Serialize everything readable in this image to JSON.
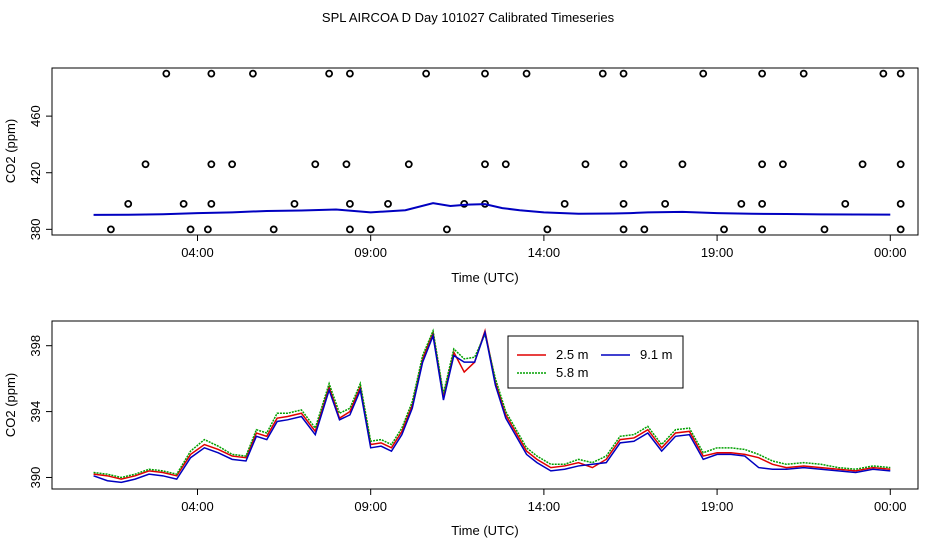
{
  "title": "SPL AIRCOA D  Day 101027  Calibrated Timeseries",
  "colors": {
    "frame": "#000000",
    "s25": "#e00000",
    "s58": "#00a000",
    "s91": "#0000c0",
    "circles": "#000000"
  },
  "chart_data": [
    {
      "type": "scatter",
      "xlabel": "Time (UTC)",
      "ylabel": "CO2 (ppm)",
      "x_tick_labels": [
        "04:00",
        "09:00",
        "14:00",
        "19:00",
        "00:00"
      ],
      "x_tick_hours": [
        4,
        9,
        14,
        19,
        24
      ],
      "xlim": [
        -0.2,
        24.8
      ],
      "y_ticks": [
        380,
        420,
        460
      ],
      "ylim": [
        376,
        494
      ],
      "grid": false,
      "points": [
        [
          1.5,
          380
        ],
        [
          2.0,
          398
        ],
        [
          2.5,
          426
        ],
        [
          3.1,
          490
        ],
        [
          3.6,
          398
        ],
        [
          3.8,
          380
        ],
        [
          4.3,
          380
        ],
        [
          4.4,
          398
        ],
        [
          4.4,
          426
        ],
        [
          4.4,
          490
        ],
        [
          5.0,
          426
        ],
        [
          5.6,
          490
        ],
        [
          6.2,
          380
        ],
        [
          6.8,
          398
        ],
        [
          7.4,
          426
        ],
        [
          7.8,
          490
        ],
        [
          8.3,
          426
        ],
        [
          8.4,
          398
        ],
        [
          8.4,
          380
        ],
        [
          8.4,
          490
        ],
        [
          9.0,
          380
        ],
        [
          9.5,
          398
        ],
        [
          10.1,
          426
        ],
        [
          10.6,
          490
        ],
        [
          11.2,
          380
        ],
        [
          11.7,
          398
        ],
        [
          12.3,
          398
        ],
        [
          12.3,
          426
        ],
        [
          12.3,
          490
        ],
        [
          12.9,
          426
        ],
        [
          13.5,
          490
        ],
        [
          14.1,
          380
        ],
        [
          14.6,
          398
        ],
        [
          15.2,
          426
        ],
        [
          15.7,
          490
        ],
        [
          16.3,
          426
        ],
        [
          16.3,
          398
        ],
        [
          16.3,
          380
        ],
        [
          16.3,
          490
        ],
        [
          16.9,
          380
        ],
        [
          17.5,
          398
        ],
        [
          18.0,
          426
        ],
        [
          18.6,
          490
        ],
        [
          19.2,
          380
        ],
        [
          19.7,
          398
        ],
        [
          20.3,
          398
        ],
        [
          20.3,
          426
        ],
        [
          20.3,
          490
        ],
        [
          20.3,
          380
        ],
        [
          20.9,
          426
        ],
        [
          21.5,
          490
        ],
        [
          22.1,
          380
        ],
        [
          22.7,
          398
        ],
        [
          23.2,
          426
        ],
        [
          23.8,
          490
        ],
        [
          24.3,
          426
        ],
        [
          24.3,
          398
        ],
        [
          24.3,
          380
        ],
        [
          24.3,
          490
        ]
      ],
      "series": [
        {
          "name": "",
          "x": [
            1.0,
            2.0,
            3.0,
            4.0,
            5.0,
            6.0,
            7.0,
            8.0,
            9.0,
            10.0,
            10.8,
            11.3,
            11.8,
            12.3,
            12.8,
            13.3,
            14.0,
            15.0,
            16.0,
            16.5,
            17.0,
            18.0,
            19.0,
            20.0,
            21.0,
            22.0,
            23.0,
            24.0
          ],
          "y": [
            390.2,
            390.3,
            390.7,
            391.5,
            392.0,
            393.0,
            393.3,
            394.0,
            392.0,
            393.5,
            398.5,
            396.5,
            397.5,
            397.8,
            395.0,
            393.5,
            392.0,
            391.0,
            391.2,
            391.5,
            392.0,
            392.3,
            391.5,
            391.0,
            390.8,
            390.6,
            390.5,
            390.4
          ]
        }
      ]
    },
    {
      "type": "line",
      "xlabel": "Time (UTC)",
      "ylabel": "CO2 (ppm)",
      "x_tick_labels": [
        "04:00",
        "09:00",
        "14:00",
        "19:00",
        "00:00"
      ],
      "x_tick_hours": [
        4,
        9,
        14,
        19,
        24
      ],
      "xlim": [
        -0.2,
        24.8
      ],
      "y_ticks": [
        390,
        394,
        398
      ],
      "ylim": [
        389.3,
        399.5
      ],
      "legend_position": "top-center",
      "series": [
        {
          "name": "2.5 m",
          "x": [
            1.0,
            1.4,
            1.8,
            2.2,
            2.6,
            3.0,
            3.4,
            3.8,
            4.2,
            4.6,
            5.0,
            5.4,
            5.7,
            6.0,
            6.3,
            6.6,
            7.0,
            7.4,
            7.8,
            8.1,
            8.4,
            8.7,
            9.0,
            9.3,
            9.6,
            9.9,
            10.2,
            10.5,
            10.8,
            11.1,
            11.4,
            11.7,
            12.0,
            12.3,
            12.6,
            12.9,
            13.2,
            13.5,
            13.8,
            14.2,
            14.6,
            15.0,
            15.4,
            15.8,
            16.2,
            16.6,
            17.0,
            17.4,
            17.8,
            18.2,
            18.6,
            19.0,
            19.4,
            19.8,
            20.2,
            20.6,
            21.0,
            21.5,
            22.0,
            22.5,
            23.0,
            23.5,
            24.0
          ],
          "y": [
            390.2,
            390.1,
            389.9,
            390.1,
            390.4,
            390.3,
            390.1,
            391.4,
            392.0,
            391.7,
            391.3,
            391.2,
            392.7,
            392.5,
            393.6,
            393.7,
            393.9,
            392.8,
            395.5,
            393.6,
            394.0,
            395.5,
            392.0,
            392.1,
            391.8,
            392.8,
            394.4,
            397.2,
            398.8,
            394.9,
            397.6,
            396.4,
            397.0,
            398.9,
            395.8,
            393.8,
            392.7,
            391.6,
            391.1,
            390.6,
            390.7,
            390.9,
            390.6,
            391.1,
            392.3,
            392.4,
            392.9,
            391.8,
            392.7,
            392.8,
            391.3,
            391.5,
            391.5,
            391.4,
            391.2,
            390.8,
            390.6,
            390.7,
            390.6,
            390.5,
            390.4,
            390.6,
            390.5
          ]
        },
        {
          "name": "5.8 m",
          "x": [
            1.0,
            1.4,
            1.8,
            2.2,
            2.6,
            3.0,
            3.4,
            3.8,
            4.2,
            4.6,
            5.0,
            5.4,
            5.7,
            6.0,
            6.3,
            6.6,
            7.0,
            7.4,
            7.8,
            8.1,
            8.4,
            8.7,
            9.0,
            9.3,
            9.6,
            9.9,
            10.2,
            10.5,
            10.8,
            11.1,
            11.4,
            11.7,
            12.0,
            12.3,
            12.6,
            12.9,
            13.2,
            13.5,
            13.8,
            14.2,
            14.6,
            15.0,
            15.4,
            15.8,
            16.2,
            16.6,
            17.0,
            17.4,
            17.8,
            18.2,
            18.6,
            19.0,
            19.4,
            19.8,
            20.2,
            20.6,
            21.0,
            21.5,
            22.0,
            22.5,
            23.0,
            23.5,
            24.0
          ],
          "y": [
            390.3,
            390.2,
            390.0,
            390.2,
            390.5,
            390.4,
            390.2,
            391.6,
            392.3,
            391.9,
            391.4,
            391.3,
            392.9,
            392.7,
            393.9,
            393.9,
            394.1,
            393.0,
            395.7,
            393.9,
            394.2,
            395.7,
            392.2,
            392.3,
            392.0,
            393.0,
            394.6,
            397.4,
            398.9,
            395.1,
            397.8,
            397.2,
            397.3,
            398.7,
            396.0,
            394.0,
            392.9,
            391.8,
            391.3,
            390.8,
            390.8,
            391.1,
            390.9,
            391.3,
            392.5,
            392.6,
            393.1,
            392.0,
            392.9,
            393.0,
            391.5,
            391.8,
            391.8,
            391.7,
            391.4,
            391.0,
            390.8,
            390.9,
            390.8,
            390.6,
            390.5,
            390.7,
            390.6
          ]
        },
        {
          "name": "9.1 m",
          "x": [
            1.0,
            1.4,
            1.8,
            2.2,
            2.6,
            3.0,
            3.4,
            3.8,
            4.2,
            4.6,
            5.0,
            5.4,
            5.7,
            6.0,
            6.3,
            6.6,
            7.0,
            7.4,
            7.8,
            8.1,
            8.4,
            8.7,
            9.0,
            9.3,
            9.6,
            9.9,
            10.2,
            10.5,
            10.8,
            11.1,
            11.4,
            11.7,
            12.0,
            12.3,
            12.6,
            12.9,
            13.2,
            13.5,
            13.8,
            14.2,
            14.6,
            15.0,
            15.4,
            15.8,
            16.2,
            16.6,
            17.0,
            17.4,
            17.8,
            18.2,
            18.6,
            19.0,
            19.4,
            19.8,
            20.2,
            20.6,
            21.0,
            21.5,
            22.0,
            22.5,
            23.0,
            23.5,
            24.0
          ],
          "y": [
            390.1,
            389.8,
            389.7,
            389.9,
            390.2,
            390.1,
            389.9,
            391.2,
            391.8,
            391.5,
            391.1,
            391.0,
            392.5,
            392.3,
            393.4,
            393.5,
            393.7,
            392.6,
            395.3,
            393.5,
            393.8,
            395.3,
            391.8,
            391.9,
            391.6,
            392.6,
            394.2,
            397.0,
            398.6,
            394.7,
            397.4,
            397.0,
            397.0,
            398.8,
            395.6,
            393.6,
            392.5,
            391.4,
            390.9,
            390.4,
            390.5,
            390.7,
            390.8,
            390.9,
            392.1,
            392.2,
            392.7,
            391.6,
            392.5,
            392.6,
            391.1,
            391.4,
            391.4,
            391.3,
            390.6,
            390.5,
            390.5,
            390.6,
            390.5,
            390.4,
            390.3,
            390.5,
            390.4
          ]
        }
      ]
    }
  ]
}
